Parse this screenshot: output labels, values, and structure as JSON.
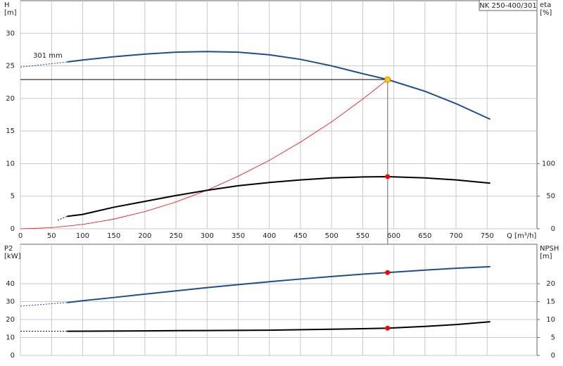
{
  "chart_data": [
    {
      "type": "line",
      "title": "NK 250-400/301",
      "annotation": "301 mm",
      "xlabel": "Q [m³/h]",
      "ylabel": "H",
      "ylabel_unit": "[m]",
      "y2label": "eta",
      "y2label_unit": "[%]",
      "xlim": [
        0,
        830
      ],
      "xticks": [
        0,
        50,
        100,
        150,
        200,
        250,
        300,
        350,
        400,
        450,
        500,
        550,
        600,
        650,
        700,
        750
      ],
      "xtick_labels": true,
      "ylim": [
        0,
        35
      ],
      "yticks": [
        0,
        5,
        10,
        15,
        20,
        25,
        30
      ],
      "y2lim": [
        0,
        350
      ],
      "y2ticks": [
        0,
        50,
        100
      ],
      "grid": true,
      "operating_point": {
        "x": 590,
        "y": 22.9
      },
      "series": [
        {
          "color": "#1d4f8c",
          "dash": true,
          "width": 1,
          "x": [
            0,
            75
          ],
          "values": [
            24.8,
            25.6
          ]
        },
        {
          "color": "#1d4f8c",
          "width": 2,
          "x": [
            75,
            100,
            150,
            200,
            250,
            300,
            350,
            400,
            450,
            500,
            550,
            590,
            650,
            700,
            755
          ],
          "values": [
            25.6,
            25.9,
            26.4,
            26.8,
            27.1,
            27.2,
            27.1,
            26.7,
            26.0,
            25.0,
            23.8,
            22.9,
            21.1,
            19.2,
            16.8
          ]
        },
        {
          "color": "#ff0000",
          "width": 0.8,
          "x": [
            0,
            50,
            100,
            150,
            200,
            250,
            300,
            350,
            400,
            450,
            500,
            550,
            590
          ],
          "values": [
            0,
            0.16,
            0.66,
            1.48,
            2.63,
            4.11,
            5.92,
            8.06,
            10.5,
            13.3,
            16.4,
            19.9,
            22.9
          ]
        },
        {
          "color": "#000000",
          "dash": true,
          "width": 1,
          "axis": "y2",
          "x": [
            60,
            75
          ],
          "values": [
            13,
            19
          ]
        },
        {
          "color": "#000000",
          "width": 2,
          "axis": "y2",
          "x": [
            75,
            100,
            150,
            200,
            250,
            300,
            350,
            400,
            450,
            500,
            550,
            590,
            650,
            700,
            755
          ],
          "values": [
            19,
            22,
            33,
            42,
            51,
            59,
            66,
            71,
            75,
            78,
            79.5,
            80,
            78,
            75,
            70
          ],
          "point": {
            "x": 590,
            "y": 80
          }
        }
      ]
    },
    {
      "type": "line",
      "ylabel": "P2",
      "ylabel_unit": "[kW]",
      "y2label": "NPSH",
      "y2label_unit": "[m]",
      "xlim": [
        0,
        830
      ],
      "xticks": [
        0,
        50,
        100,
        150,
        200,
        250,
        300,
        350,
        400,
        450,
        500,
        550,
        600,
        650,
        700,
        750
      ],
      "xtick_labels": false,
      "ylim": [
        0,
        62
      ],
      "yticks": [
        0,
        10,
        20,
        30,
        40
      ],
      "y2lim": [
        0,
        31
      ],
      "y2ticks": [
        0,
        5,
        10,
        15,
        20
      ],
      "grid": true,
      "series": [
        {
          "color": "#1d4f8c",
          "dash": true,
          "width": 1,
          "x": [
            0,
            75
          ],
          "values": [
            27.5,
            29.5
          ]
        },
        {
          "color": "#1d4f8c",
          "width": 2,
          "x": [
            75,
            100,
            150,
            200,
            250,
            300,
            350,
            400,
            450,
            500,
            550,
            590,
            650,
            700,
            755
          ],
          "values": [
            29.5,
            30.5,
            32.3,
            34.2,
            36,
            37.8,
            39.5,
            41.1,
            42.6,
            44,
            45.3,
            46.2,
            47.6,
            48.6,
            49.5
          ],
          "point": {
            "x": 590,
            "y": 46.2
          }
        },
        {
          "color": "#000000",
          "dash": true,
          "width": 1,
          "axis": "y2",
          "x": [
            0,
            75
          ],
          "values": [
            6.75,
            6.75
          ]
        },
        {
          "color": "#000000",
          "width": 2,
          "axis": "y2",
          "x": [
            75,
            200,
            300,
            400,
            500,
            590,
            650,
            700,
            755
          ],
          "values": [
            6.75,
            6.85,
            6.95,
            7.05,
            7.3,
            7.6,
            8.1,
            8.6,
            9.4
          ],
          "point": {
            "x": 590,
            "y": 7.6
          }
        }
      ]
    }
  ]
}
